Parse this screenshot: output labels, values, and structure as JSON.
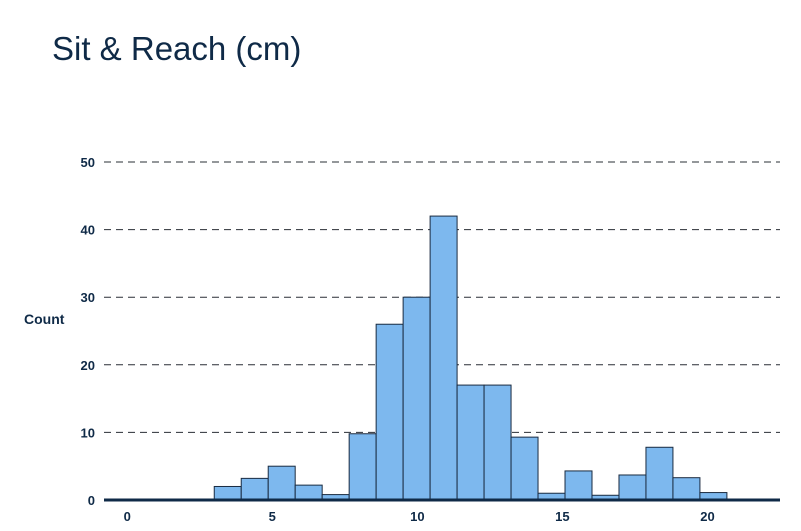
{
  "chart_data": {
    "type": "bar",
    "title": "Sit & Reach (cm)",
    "xlabel": "",
    "ylabel": "Count",
    "bin_width": 0.93,
    "bin_starts": [
      3.0,
      3.93,
      4.86,
      5.79,
      6.72,
      7.65,
      8.58,
      9.51,
      10.44,
      11.37,
      12.3,
      13.23,
      14.16,
      15.09,
      16.02,
      16.95,
      17.88,
      18.81,
      19.74
    ],
    "values": [
      2,
      3.2,
      5,
      2.2,
      0.8,
      9.8,
      26,
      30,
      42,
      17,
      17,
      9.3,
      1,
      4.3,
      0.7,
      3.7,
      7.8,
      3.3,
      1.1
    ],
    "xlim": [
      -0.8,
      22.5
    ],
    "ylim": [
      0,
      50
    ],
    "x_ticks": [
      0,
      5,
      10,
      15,
      20
    ],
    "y_ticks": [
      0,
      10,
      20,
      30,
      40,
      50
    ],
    "grid": true,
    "colors": {
      "bar": "#7db8ee",
      "bar_edge": "#1a2b40",
      "text": "#0f2a47"
    }
  }
}
